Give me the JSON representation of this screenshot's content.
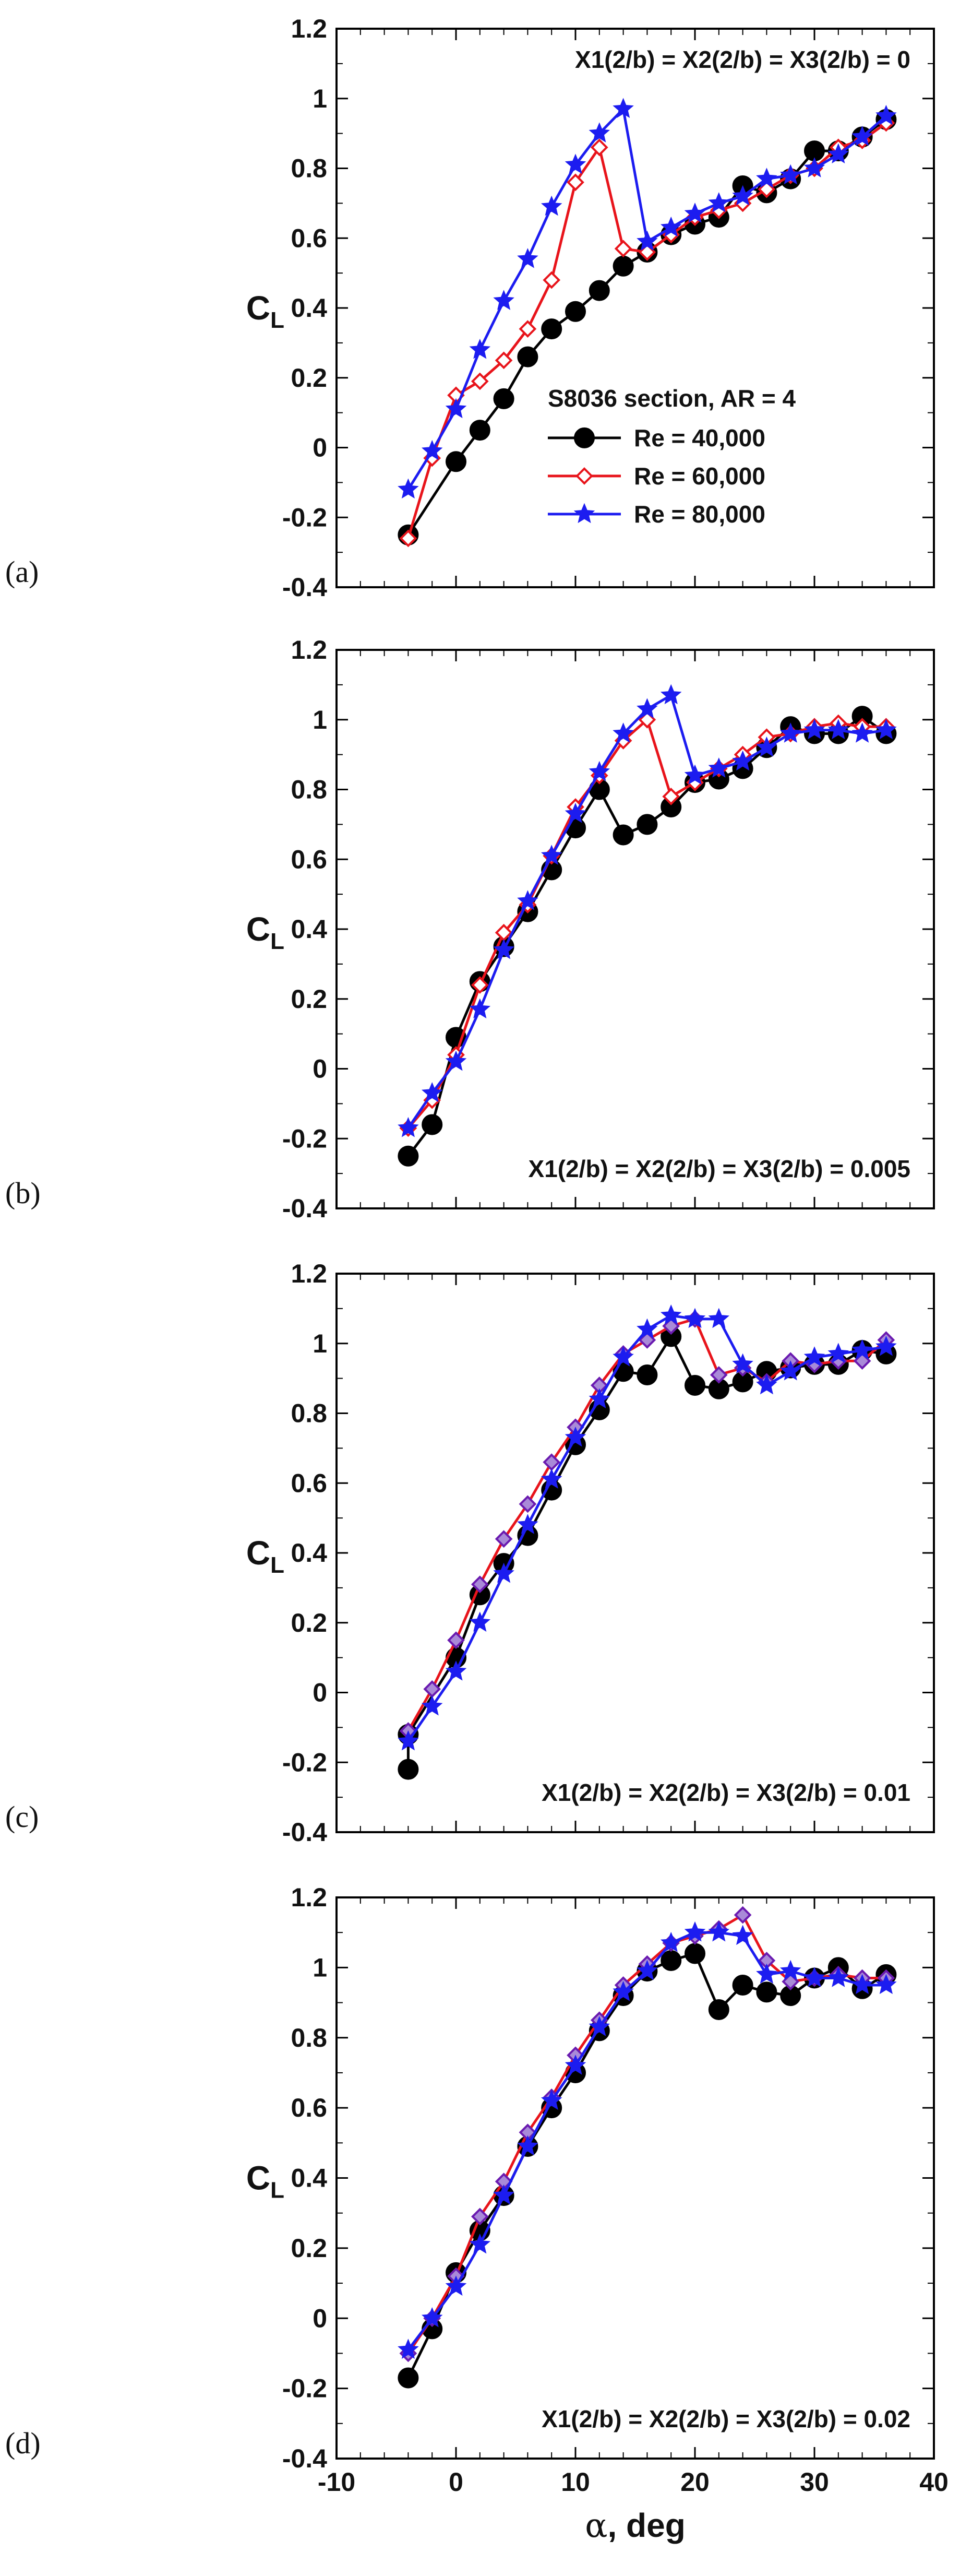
{
  "figure": {
    "colors": {
      "black": "#000000",
      "red": "#e8141b",
      "blue": "#1c1cf0",
      "purple_edge": "#6a1ab0"
    }
  },
  "chart_data": [
    {
      "type": "line",
      "panel_label": "(a)",
      "annotation": "X1(2/b) = X2(2/b) = X3(2/b) = 0",
      "annotation_position": "top-right",
      "ylabel": "C",
      "ylabel_sub": "L",
      "xlim": [
        -10,
        40
      ],
      "ylim": [
        -0.4,
        1.2
      ],
      "yticks": [
        "-0.4",
        "-0.2",
        "0",
        "0.2",
        "0.4",
        "0.6",
        "0.8",
        "1",
        "1.2"
      ],
      "legend": {
        "title": "S8036 section, AR = 4",
        "placement": "center-right",
        "entries": [
          "Re = 40,000",
          "Re = 60,000",
          "Re = 80,000"
        ]
      },
      "series": [
        {
          "name": "Re = 40,000",
          "color": "#000000",
          "marker": "circle",
          "x": [
            -4,
            0,
            2,
            4,
            6,
            8,
            10,
            12,
            14,
            16,
            18,
            20,
            22,
            24,
            26,
            28,
            30,
            32,
            34,
            36
          ],
          "y": [
            -0.25,
            -0.04,
            0.05,
            0.14,
            0.26,
            0.34,
            0.39,
            0.45,
            0.52,
            0.56,
            0.61,
            0.64,
            0.66,
            0.75,
            0.73,
            0.77,
            0.85,
            0.85,
            0.89,
            0.94
          ]
        },
        {
          "name": "Re = 60,000",
          "color": "#e8141b",
          "marker": "diamond",
          "x": [
            -4,
            -2,
            0,
            2,
            4,
            6,
            8,
            10,
            12,
            14,
            16,
            18,
            20,
            22,
            24,
            26,
            28,
            30,
            32,
            34,
            36
          ],
          "y": [
            -0.26,
            -0.03,
            0.15,
            0.19,
            0.25,
            0.34,
            0.48,
            0.76,
            0.86,
            0.57,
            0.56,
            0.61,
            0.66,
            0.68,
            0.7,
            0.74,
            0.78,
            0.8,
            0.86,
            0.88,
            0.93
          ]
        },
        {
          "name": "Re = 80,000",
          "color": "#1c1cf0",
          "marker": "star",
          "x": [
            -4,
            -2,
            0,
            2,
            4,
            6,
            8,
            10,
            12,
            14,
            16,
            18,
            20,
            22,
            24,
            26,
            28,
            30,
            32,
            34,
            36
          ],
          "y": [
            -0.12,
            -0.01,
            0.11,
            0.28,
            0.42,
            0.54,
            0.69,
            0.81,
            0.9,
            0.97,
            0.59,
            0.63,
            0.67,
            0.7,
            0.72,
            0.77,
            0.78,
            0.8,
            0.84,
            0.89,
            0.95
          ]
        }
      ]
    },
    {
      "type": "line",
      "panel_label": "(b)",
      "annotation": "X1(2/b) = X2(2/b) = X3(2/b) = 0.005",
      "annotation_position": "bottom-right",
      "ylabel": "C",
      "ylabel_sub": "L",
      "xlim": [
        -10,
        40
      ],
      "ylim": [
        -0.4,
        1.2
      ],
      "yticks": [
        "-0.4",
        "-0.2",
        "0",
        "0.2",
        "0.4",
        "0.6",
        "0.8",
        "1",
        "1.2"
      ],
      "series": [
        {
          "name": "Re = 40,000",
          "color": "#000000",
          "marker": "circle",
          "x": [
            -4,
            -2,
            0,
            2,
            4,
            6,
            8,
            10,
            12,
            14,
            16,
            18,
            20,
            22,
            24,
            26,
            28,
            30,
            32,
            34,
            36
          ],
          "y": [
            -0.25,
            -0.16,
            0.09,
            0.25,
            0.35,
            0.45,
            0.57,
            0.69,
            0.8,
            0.67,
            0.7,
            0.75,
            0.82,
            0.83,
            0.86,
            0.92,
            0.98,
            0.96,
            0.96,
            1.01,
            0.96
          ]
        },
        {
          "name": "Re = 60,000",
          "color": "#e8141b",
          "marker": "diamond",
          "x": [
            -4,
            -2,
            0,
            2,
            4,
            6,
            8,
            10,
            12,
            14,
            16,
            18,
            20,
            22,
            24,
            26,
            28,
            30,
            32,
            34,
            36
          ],
          "y": [
            -0.17,
            -0.09,
            0.04,
            0.24,
            0.39,
            0.47,
            0.61,
            0.75,
            0.84,
            0.94,
            1.0,
            0.78,
            0.82,
            0.86,
            0.9,
            0.95,
            0.96,
            0.98,
            0.99,
            0.98,
            0.98
          ]
        },
        {
          "name": "Re = 80,000",
          "color": "#1c1cf0",
          "marker": "star",
          "x": [
            -4,
            -2,
            0,
            2,
            4,
            6,
            8,
            10,
            12,
            14,
            16,
            18,
            20,
            22,
            24,
            26,
            28,
            30,
            32,
            34,
            36
          ],
          "y": [
            -0.17,
            -0.07,
            0.02,
            0.17,
            0.34,
            0.48,
            0.61,
            0.73,
            0.85,
            0.96,
            1.03,
            1.07,
            0.84,
            0.86,
            0.88,
            0.92,
            0.96,
            0.97,
            0.97,
            0.96,
            0.97
          ]
        }
      ]
    },
    {
      "type": "line",
      "panel_label": "(c)",
      "annotation": "X1(2/b) = X2(2/b) = X3(2/b) = 0.01",
      "annotation_position": "bottom-right",
      "ylabel": "C",
      "ylabel_sub": "L",
      "xlim": [
        -10,
        40
      ],
      "ylim": [
        -0.4,
        1.2
      ],
      "yticks": [
        "-0.4",
        "-0.2",
        "0",
        "0.2",
        "0.4",
        "0.6",
        "0.8",
        "1",
        "1.2"
      ],
      "series": [
        {
          "name": "Re = 40,000",
          "color": "#000000",
          "marker": "circle",
          "x": [
            -4,
            -4,
            0,
            2,
            4,
            6,
            8,
            10,
            12,
            14,
            16,
            18,
            20,
            22,
            24,
            26,
            28,
            30,
            32,
            34,
            36
          ],
          "y": [
            -0.22,
            -0.12,
            0.1,
            0.28,
            0.37,
            0.45,
            0.58,
            0.71,
            0.81,
            0.92,
            0.91,
            1.02,
            0.88,
            0.87,
            0.89,
            0.92,
            0.93,
            0.94,
            0.94,
            0.98,
            0.97
          ]
        },
        {
          "name": "Re = 60,000",
          "color": "#e8141b",
          "marker": "diamond",
          "x": [
            -4,
            -2,
            0,
            2,
            4,
            6,
            8,
            10,
            12,
            14,
            16,
            18,
            20,
            22,
            24,
            26,
            28,
            30,
            32,
            34,
            36
          ],
          "y": [
            -0.11,
            0.01,
            0.15,
            0.31,
            0.44,
            0.54,
            0.66,
            0.76,
            0.88,
            0.97,
            1.01,
            1.05,
            1.07,
            0.91,
            0.93,
            0.89,
            0.95,
            0.94,
            0.95,
            0.95,
            1.01
          ]
        },
        {
          "name": "Re = 80,000",
          "color": "#1c1cf0",
          "marker": "star",
          "x": [
            -4,
            -2,
            0,
            2,
            4,
            6,
            8,
            10,
            12,
            14,
            16,
            18,
            20,
            22,
            24,
            26,
            28,
            30,
            32,
            34,
            36
          ],
          "y": [
            -0.14,
            -0.04,
            0.06,
            0.2,
            0.34,
            0.48,
            0.61,
            0.73,
            0.84,
            0.96,
            1.04,
            1.08,
            1.07,
            1.07,
            0.94,
            0.88,
            0.92,
            0.96,
            0.97,
            0.98,
            0.99
          ]
        }
      ]
    },
    {
      "type": "line",
      "panel_label": "(d)",
      "annotation": "X1(2/b) = X2(2/b) = X3(2/b) = 0.02",
      "annotation_position": "bottom-right",
      "xlabel_symbol": "α",
      "xlabel": ", deg",
      "ylabel": "C",
      "ylabel_sub": "L",
      "xlim": [
        -10,
        40
      ],
      "ylim": [
        -0.4,
        1.2
      ],
      "xticks": [
        "-10",
        "0",
        "10",
        "20",
        "30",
        "40"
      ],
      "yticks": [
        "-0.4",
        "-0.2",
        "0",
        "0.2",
        "0.4",
        "0.6",
        "0.8",
        "1",
        "1.2"
      ],
      "series": [
        {
          "name": "Re = 40,000",
          "color": "#000000",
          "marker": "circle",
          "x": [
            -4,
            -2,
            0,
            2,
            4,
            6,
            8,
            10,
            12,
            14,
            16,
            18,
            20,
            22,
            24,
            26,
            28,
            30,
            32,
            34,
            36
          ],
          "y": [
            -0.17,
            -0.03,
            0.13,
            0.25,
            0.35,
            0.49,
            0.6,
            0.7,
            0.82,
            0.92,
            0.99,
            1.02,
            1.04,
            0.88,
            0.95,
            0.93,
            0.92,
            0.97,
            1.0,
            0.94,
            0.98
          ]
        },
        {
          "name": "Re = 60,000",
          "color": "#e8141b",
          "marker": "diamond",
          "x": [
            -4,
            -2,
            0,
            2,
            4,
            6,
            8,
            10,
            12,
            14,
            16,
            18,
            20,
            22,
            24,
            26,
            28,
            30,
            32,
            34,
            36
          ],
          "y": [
            -0.1,
            0.0,
            0.12,
            0.29,
            0.39,
            0.53,
            0.63,
            0.75,
            0.85,
            0.95,
            1.01,
            1.07,
            1.09,
            1.11,
            1.15,
            1.02,
            0.96,
            0.97,
            0.98,
            0.97,
            0.97
          ]
        },
        {
          "name": "Re = 80,000",
          "color": "#1c1cf0",
          "marker": "star",
          "x": [
            -4,
            -2,
            0,
            2,
            4,
            6,
            8,
            10,
            12,
            14,
            16,
            18,
            20,
            22,
            24,
            26,
            28,
            30,
            32,
            34,
            36
          ],
          "y": [
            -0.09,
            0.0,
            0.09,
            0.21,
            0.35,
            0.49,
            0.62,
            0.72,
            0.83,
            0.93,
            0.99,
            1.07,
            1.1,
            1.1,
            1.09,
            0.98,
            0.99,
            0.97,
            0.97,
            0.95,
            0.95
          ]
        }
      ]
    }
  ]
}
